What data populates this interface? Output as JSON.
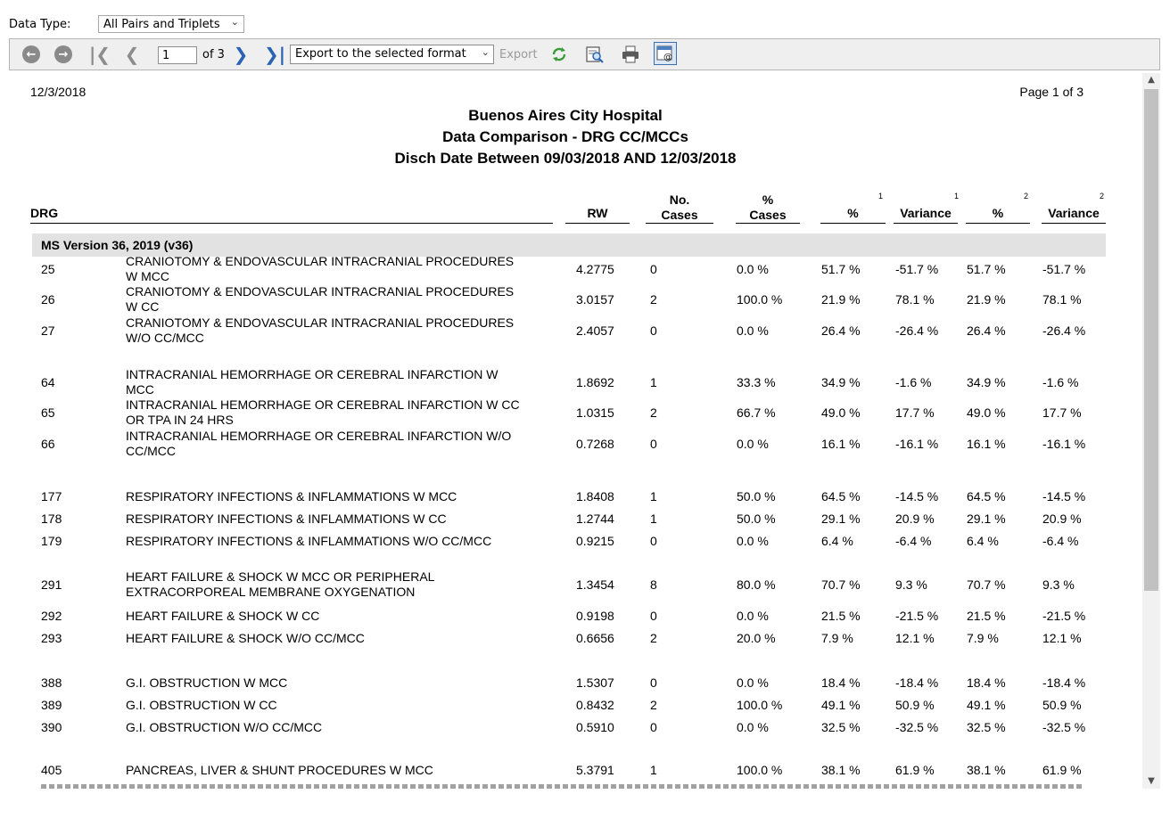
{
  "datatype": {
    "label": "Data Type:",
    "selected": "All Pairs and Triplets"
  },
  "toolbar": {
    "back_icon": "back-icon",
    "forward_icon": "forward-icon",
    "page_value": "1",
    "of_label": "of 3",
    "export_format": "Export to the selected format",
    "export_label": "Export"
  },
  "report": {
    "date": "12/3/2018",
    "page": "Page 1 of 3",
    "title_1": "Buenos Aires City Hospital",
    "title_2": "Data Comparison - DRG CC/MCCs",
    "title_3": "Disch Date Between 09/03/2018 AND 12/03/2018",
    "headers": {
      "drg": "DRG",
      "rw": "RW",
      "no_cases": "No.\nCases",
      "pct_cases": "%\nCases",
      "pct1": "%",
      "var1": "Variance",
      "pct2": "%",
      "var2": "Variance",
      "sup1": "1",
      "sup2": "2"
    },
    "group": "MS Version 36, 2019 (v36)",
    "rows": [
      {
        "drg": "25",
        "desc": "CRANIOTOMY & ENDOVASCULAR INTRACRANIAL PROCEDURES\nW MCC",
        "rw": "4.2775",
        "cases": "0",
        "pct_cases": "0.0 %",
        "p1": "51.7 %",
        "v1": "-51.7 %",
        "p2": "51.7 %",
        "v2": "-51.7 %"
      },
      {
        "drg": "26",
        "desc": "CRANIOTOMY & ENDOVASCULAR INTRACRANIAL PROCEDURES\nW CC",
        "rw": "3.0157",
        "cases": "2",
        "pct_cases": "100.0 %",
        "p1": "21.9 %",
        "v1": "78.1 %",
        "p2": "21.9 %",
        "v2": "78.1 %"
      },
      {
        "drg": "27",
        "desc": "CRANIOTOMY & ENDOVASCULAR INTRACRANIAL PROCEDURES\nW/O CC/MCC",
        "rw": "2.4057",
        "cases": "0",
        "pct_cases": "0.0 %",
        "p1": "26.4 %",
        "v1": "-26.4 %",
        "p2": "26.4 %",
        "v2": "-26.4 %"
      },
      {
        "drg": "64",
        "desc": "INTRACRANIAL HEMORRHAGE OR CEREBRAL INFARCTION W\nMCC",
        "rw": "1.8692",
        "cases": "1",
        "pct_cases": "33.3 %",
        "p1": "34.9 %",
        "v1": "-1.6 %",
        "p2": "34.9 %",
        "v2": "-1.6 %"
      },
      {
        "drg": "65",
        "desc": "INTRACRANIAL HEMORRHAGE OR CEREBRAL INFARCTION W CC\nOR TPA IN 24 HRS",
        "rw": "1.0315",
        "cases": "2",
        "pct_cases": "66.7 %",
        "p1": "49.0 %",
        "v1": "17.7 %",
        "p2": "49.0 %",
        "v2": "17.7 %"
      },
      {
        "drg": "66",
        "desc": "INTRACRANIAL HEMORRHAGE OR CEREBRAL INFARCTION W/O\nCC/MCC",
        "rw": "0.7268",
        "cases": "0",
        "pct_cases": "0.0 %",
        "p1": "16.1 %",
        "v1": "-16.1 %",
        "p2": "16.1 %",
        "v2": "-16.1 %"
      },
      {
        "drg": "177",
        "desc": "RESPIRATORY INFECTIONS & INFLAMMATIONS W MCC",
        "rw": "1.8408",
        "cases": "1",
        "pct_cases": "50.0 %",
        "p1": "64.5 %",
        "v1": "-14.5 %",
        "p2": "64.5 %",
        "v2": "-14.5 %"
      },
      {
        "drg": "178",
        "desc": "RESPIRATORY INFECTIONS & INFLAMMATIONS W CC",
        "rw": "1.2744",
        "cases": "1",
        "pct_cases": "50.0 %",
        "p1": "29.1 %",
        "v1": "20.9 %",
        "p2": "29.1 %",
        "v2": "20.9 %"
      },
      {
        "drg": "179",
        "desc": "RESPIRATORY INFECTIONS & INFLAMMATIONS W/O CC/MCC",
        "rw": "0.9215",
        "cases": "0",
        "pct_cases": "0.0 %",
        "p1": "6.4 %",
        "v1": "-6.4 %",
        "p2": "6.4 %",
        "v2": "-6.4 %"
      },
      {
        "drg": "291",
        "desc": "HEART FAILURE & SHOCK W MCC OR PERIPHERAL\nEXTRACORPOREAL MEMBRANE OXYGENATION",
        "rw": "1.3454",
        "cases": "8",
        "pct_cases": "80.0 %",
        "p1": "70.7 %",
        "v1": "9.3 %",
        "p2": "70.7 %",
        "v2": "9.3 %"
      },
      {
        "drg": "292",
        "desc": "HEART FAILURE & SHOCK W CC",
        "rw": "0.9198",
        "cases": "0",
        "pct_cases": "0.0 %",
        "p1": "21.5 %",
        "v1": "-21.5 %",
        "p2": "21.5 %",
        "v2": "-21.5 %"
      },
      {
        "drg": "293",
        "desc": "HEART FAILURE & SHOCK W/O CC/MCC",
        "rw": "0.6656",
        "cases": "2",
        "pct_cases": "20.0 %",
        "p1": "7.9 %",
        "v1": "12.1 %",
        "p2": "7.9 %",
        "v2": "12.1 %"
      },
      {
        "drg": "388",
        "desc": "G.I. OBSTRUCTION W MCC",
        "rw": "1.5307",
        "cases": "0",
        "pct_cases": "0.0 %",
        "p1": "18.4 %",
        "v1": "-18.4 %",
        "p2": "18.4 %",
        "v2": "-18.4 %"
      },
      {
        "drg": "389",
        "desc": "G.I. OBSTRUCTION W CC",
        "rw": "0.8432",
        "cases": "2",
        "pct_cases": "100.0 %",
        "p1": "49.1 %",
        "v1": "50.9 %",
        "p2": "49.1 %",
        "v2": "50.9 %"
      },
      {
        "drg": "390",
        "desc": "G.I. OBSTRUCTION W/O CC/MCC",
        "rw": "0.5910",
        "cases": "0",
        "pct_cases": "0.0 %",
        "p1": "32.5 %",
        "v1": "-32.5 %",
        "p2": "32.5 %",
        "v2": "-32.5 %"
      },
      {
        "drg": "405",
        "desc": "PANCREAS, LIVER & SHUNT PROCEDURES W MCC",
        "rw": "5.3791",
        "cases": "1",
        "pct_cases": "100.0 %",
        "p1": "38.1 %",
        "v1": "61.9 %",
        "p2": "38.1 %",
        "v2": "61.9 %"
      }
    ]
  }
}
